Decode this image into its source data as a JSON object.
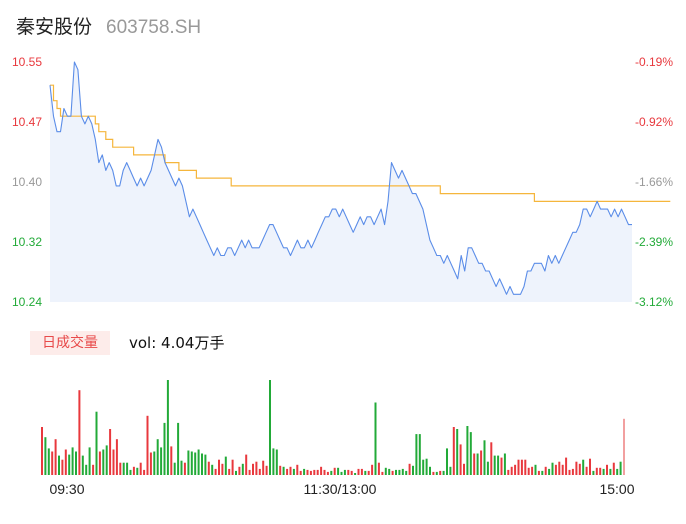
{
  "header": {
    "name": "秦安股份",
    "code": "603758.SH"
  },
  "colors": {
    "up": "#e8383d",
    "down": "#22aa38",
    "neutral": "#999999",
    "price_line": "#5b8de8",
    "avg_line": "#f5b63c",
    "area": "#eef3fc"
  },
  "volume_panel": {
    "badge": "日成交量",
    "vol_label": "vol: 4.04万手"
  },
  "chart_data": [
    {
      "type": "line",
      "name": "intraday-price",
      "ylim": [
        10.24,
        10.55
      ],
      "y_ticks": [
        "10.55",
        "10.47",
        "10.40",
        "10.32",
        "10.24"
      ],
      "y_ticks_right": [
        "-0.19%",
        "-0.92%",
        "-1.66%",
        "-2.39%",
        "-3.12%"
      ],
      "x_ticks": [
        "09:30",
        "11:30/13:00",
        "15:00"
      ],
      "price": [
        10.52,
        10.48,
        10.46,
        10.46,
        10.49,
        10.48,
        10.48,
        10.55,
        10.54,
        10.48,
        10.47,
        10.48,
        10.47,
        10.45,
        10.42,
        10.43,
        10.41,
        10.42,
        10.41,
        10.39,
        10.39,
        10.41,
        10.42,
        10.41,
        10.4,
        10.39,
        10.4,
        10.39,
        10.4,
        10.41,
        10.43,
        10.45,
        10.44,
        10.42,
        10.41,
        10.4,
        10.39,
        10.4,
        10.39,
        10.37,
        10.35,
        10.36,
        10.35,
        10.34,
        10.33,
        10.32,
        10.31,
        10.3,
        10.31,
        10.3,
        10.3,
        10.31,
        10.31,
        10.3,
        10.31,
        10.32,
        10.31,
        10.32,
        10.31,
        10.31,
        10.31,
        10.32,
        10.33,
        10.34,
        10.34,
        10.33,
        10.32,
        10.31,
        10.31,
        10.3,
        10.31,
        10.32,
        10.31,
        10.31,
        10.32,
        10.31,
        10.32,
        10.33,
        10.34,
        10.35,
        10.35,
        10.36,
        10.36,
        10.35,
        10.36,
        10.35,
        10.34,
        10.33,
        10.34,
        10.35,
        10.34,
        10.35,
        10.35,
        10.34,
        10.35,
        10.36,
        10.34,
        10.37,
        10.42,
        10.41,
        10.4,
        10.41,
        10.4,
        10.39,
        10.38,
        10.38,
        10.37,
        10.36,
        10.34,
        10.32,
        10.31,
        10.3,
        10.3,
        10.29,
        10.3,
        10.29,
        10.28,
        10.27,
        10.3,
        10.28,
        10.31,
        10.31,
        10.3,
        10.29,
        10.29,
        10.28,
        10.28,
        10.27,
        10.26,
        10.27,
        10.26,
        10.25,
        10.26,
        10.25,
        10.25,
        10.25,
        10.26,
        10.28,
        10.28,
        10.29,
        10.29,
        10.29,
        10.28,
        10.3,
        10.29,
        10.3,
        10.29,
        10.3,
        10.31,
        10.32,
        10.33,
        10.33,
        10.34,
        10.36,
        10.36,
        10.35,
        10.36,
        10.37,
        10.36,
        10.36,
        10.36,
        10.35,
        10.36,
        10.35,
        10.36,
        10.35,
        10.34,
        10.34
      ],
      "avg": [
        10.52,
        10.5,
        10.49,
        10.48,
        10.48,
        10.48,
        10.48,
        10.48,
        10.48,
        10.48,
        10.48,
        10.48,
        10.48,
        10.47,
        10.46,
        10.46,
        10.45,
        10.45,
        10.44,
        10.44,
        10.44,
        10.44,
        10.44,
        10.44,
        10.43,
        10.43,
        10.43,
        10.43,
        10.43,
        10.43,
        10.43,
        10.43,
        10.43,
        10.42,
        10.42,
        10.42,
        10.42,
        10.41,
        10.41,
        10.41,
        10.41,
        10.41,
        10.4,
        10.4,
        10.4,
        10.4,
        10.4,
        10.4,
        10.4,
        10.4,
        10.4,
        10.4,
        10.39,
        10.39,
        10.39,
        10.39,
        10.39,
        10.39,
        10.39,
        10.39,
        10.39,
        10.39,
        10.39,
        10.39,
        10.39,
        10.39,
        10.39,
        10.39,
        10.39,
        10.39,
        10.39,
        10.39,
        10.39,
        10.39,
        10.39,
        10.39,
        10.39,
        10.39,
        10.39,
        10.39,
        10.39,
        10.39,
        10.39,
        10.39,
        10.39,
        10.39,
        10.39,
        10.39,
        10.39,
        10.39,
        10.39,
        10.39,
        10.39,
        10.39,
        10.39,
        10.39,
        10.39,
        10.39,
        10.39,
        10.39,
        10.39,
        10.39,
        10.39,
        10.39,
        10.39,
        10.39,
        10.39,
        10.39,
        10.39,
        10.39,
        10.39,
        10.39,
        10.38,
        10.38,
        10.38,
        10.38,
        10.38,
        10.38,
        10.38,
        10.38,
        10.38,
        10.38,
        10.38,
        10.38,
        10.38,
        10.38,
        10.38,
        10.38,
        10.38,
        10.38,
        10.38,
        10.38,
        10.38,
        10.38,
        10.38,
        10.38,
        10.38,
        10.38,
        10.38,
        10.37,
        10.37,
        10.37,
        10.37,
        10.37,
        10.37,
        10.37,
        10.37,
        10.37,
        10.37,
        10.37,
        10.37,
        10.37,
        10.37,
        10.37,
        10.37,
        10.37,
        10.37,
        10.37,
        10.37,
        10.37,
        10.37,
        10.37,
        10.37,
        10.37,
        10.37,
        10.37,
        10.37,
        10.37,
        10.37,
        10.37,
        10.37,
        10.37,
        10.37,
        10.37,
        10.37,
        10.37,
        10.37,
        10.37,
        10.37
      ]
    },
    {
      "type": "bar",
      "name": "intraday-volume",
      "unit": "relative",
      "values": [
        47,
        37,
        26,
        23,
        35,
        19,
        15,
        25,
        20,
        27,
        23,
        83,
        19,
        10,
        27,
        10,
        62,
        23,
        25,
        29,
        45,
        25,
        35,
        12,
        12,
        12,
        5,
        8,
        7,
        12,
        5,
        58,
        22,
        23,
        35,
        27,
        51,
        93,
        28,
        12,
        51,
        14,
        12,
        24,
        23,
        22,
        25,
        21,
        20,
        13,
        10,
        6,
        15,
        11,
        18,
        6,
        15,
        4,
        8,
        11,
        20,
        5,
        11,
        13,
        6,
        14,
        9,
        93,
        26,
        25,
        9,
        8,
        6,
        8,
        6,
        10,
        4,
        6,
        5,
        4,
        5,
        5,
        8,
        5,
        3,
        4,
        7,
        7,
        3,
        5,
        5,
        4,
        2,
        6,
        6,
        4,
        4,
        10,
        71,
        12,
        3,
        7,
        6,
        4,
        5,
        5,
        6,
        4,
        11,
        9,
        40,
        40,
        15,
        16,
        8,
        3,
        3,
        4,
        4,
        26,
        8,
        47,
        45,
        30,
        11,
        48,
        42,
        21,
        21,
        24,
        34,
        13,
        32,
        19,
        19,
        17,
        21,
        5,
        8,
        10,
        15,
        15,
        15,
        7,
        8,
        10,
        4,
        4,
        8,
        6,
        12,
        10,
        13,
        10,
        17,
        5,
        6,
        13,
        11,
        15,
        8,
        16,
        4,
        7,
        7,
        6,
        10,
        6,
        12,
        6,
        13,
        55
      ]
    }
  ]
}
